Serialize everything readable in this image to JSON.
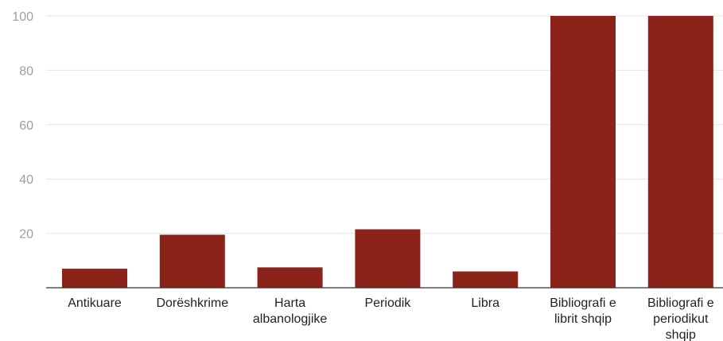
{
  "chart_data": {
    "type": "bar",
    "categories": [
      "Antikuare",
      "Dorëshkrime",
      "Harta albanologjike",
      "Periodik",
      "Libra",
      "Bibliografi e librit shqip",
      "Bibliografi e periodikut shqip"
    ],
    "category_lines": [
      [
        "Antikuare"
      ],
      [
        "Dorëshkrime"
      ],
      [
        "Harta",
        "albanologjike"
      ],
      [
        "Periodik"
      ],
      [
        "Libra"
      ],
      [
        "Bibliografi e",
        "librit shqip"
      ],
      [
        "Bibliografi e",
        "periodikut",
        "shqip"
      ]
    ],
    "values": [
      7,
      19.5,
      7.5,
      21.5,
      6,
      100,
      100
    ],
    "ylim": [
      0,
      100
    ],
    "yticks": [
      20,
      40,
      60,
      80,
      100
    ],
    "title": "",
    "xlabel": "",
    "ylabel": "",
    "grid": true,
    "legend": "none",
    "colors": {
      "bar": "#8B231A",
      "grid": "#e6e6e6",
      "axis": "#333333",
      "tick_text": "#9e9e9e",
      "label_text": "#222222"
    }
  }
}
